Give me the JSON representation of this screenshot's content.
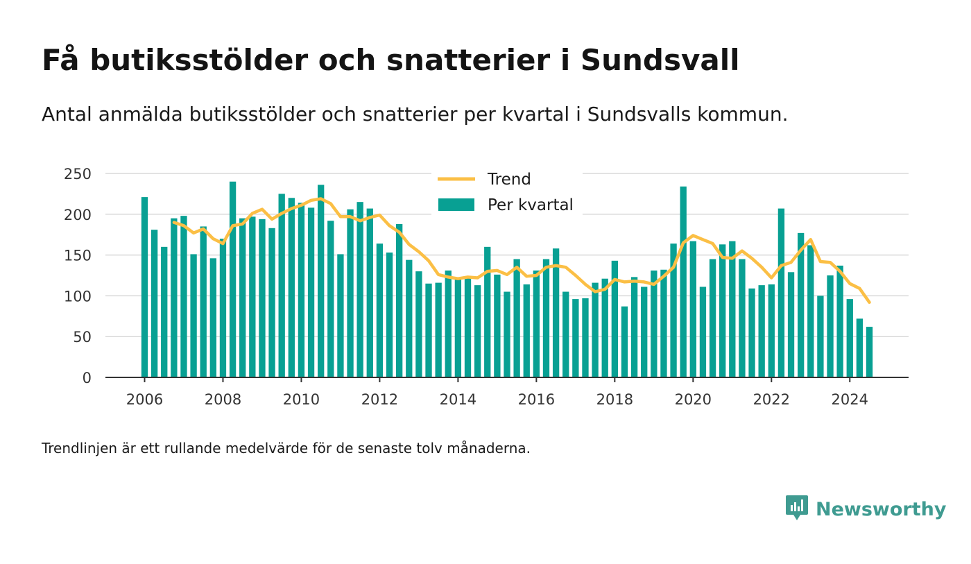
{
  "title": "Få butiksstölder och snatterier i Sundsvall",
  "subtitle": "Antal anmälda butiksstölder och snatterier per kvartal i Sundsvalls kommun.",
  "footnote": "Trendlinjen är ett rullande medelvärde för de senaste tolv månaderna.",
  "brand": {
    "name": "Newsworthy",
    "color": "#3f9b91",
    "icon": "newsworthy-logo-icon"
  },
  "chart_data": {
    "type": "bar",
    "title": "",
    "xlabel": "",
    "ylabel": "",
    "ylim": [
      0,
      250
    ],
    "yticks": [
      0,
      50,
      100,
      150,
      200,
      250
    ],
    "xticks": [
      "2006",
      "2008",
      "2010",
      "2012",
      "2014",
      "2016",
      "2018",
      "2020",
      "2022",
      "2024"
    ],
    "xlim": [
      2005.0,
      2025.5
    ],
    "grid": true,
    "legend_position": "top-center",
    "legend": [
      {
        "name": "Trend",
        "kind": "line",
        "color": "#fbbf45"
      },
      {
        "name": "Per kvartal",
        "kind": "bar",
        "color": "#08a093"
      }
    ],
    "x_start": 2006.0,
    "x_step": 0.25,
    "series": [
      {
        "name": "Per kvartal",
        "kind": "bar",
        "color": "#08a093",
        "values": [
          221,
          181,
          160,
          195,
          198,
          151,
          185,
          146,
          170,
          240,
          195,
          197,
          194,
          183,
          225,
          220,
          214,
          208,
          236,
          192,
          151,
          206,
          215,
          207,
          164,
          153,
          188,
          144,
          130,
          115,
          116,
          131,
          121,
          122,
          113,
          160,
          126,
          105,
          145,
          114,
          131,
          145,
          158,
          105,
          96,
          97,
          116,
          121,
          143,
          87,
          123,
          111,
          131,
          132,
          164,
          234,
          167,
          111,
          145,
          163,
          167,
          145,
          109,
          113,
          114,
          207,
          129,
          177,
          162,
          100,
          125,
          137,
          96,
          72,
          62
        ]
      },
      {
        "name": "Trend",
        "kind": "line",
        "color": "#fbbf45",
        "values": [
          null,
          null,
          null,
          190,
          186,
          177,
          182,
          170,
          164,
          186,
          188,
          201,
          206,
          194,
          201,
          207,
          211,
          217,
          219,
          213,
          197,
          197,
          192,
          196,
          199,
          186,
          178,
          163,
          154,
          143,
          126,
          123,
          121,
          123,
          122,
          130,
          131,
          126,
          135,
          124,
          125,
          135,
          137,
          135,
          125,
          114,
          105,
          108,
          120,
          117,
          118,
          117,
          114,
          124,
          135,
          165,
          174,
          169,
          164,
          147,
          146,
          155,
          146,
          135,
          122,
          137,
          141,
          156,
          169,
          142,
          141,
          130,
          115,
          109,
          92
        ]
      }
    ]
  }
}
